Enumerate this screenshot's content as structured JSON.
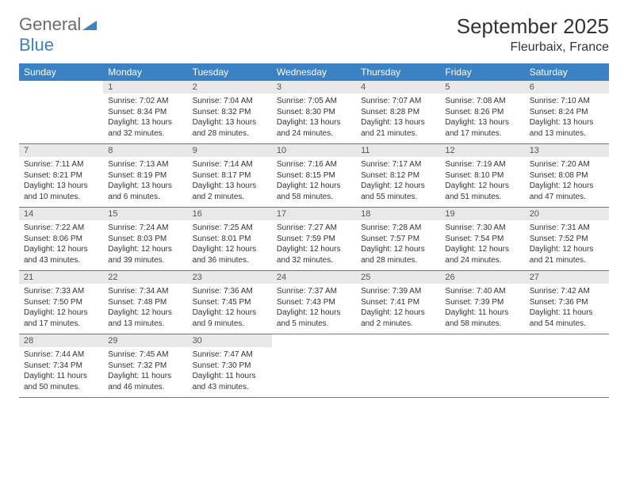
{
  "logo": {
    "word1": "General",
    "word2": "Blue"
  },
  "title": "September 2025",
  "location": "Fleurbaix, France",
  "colors": {
    "header_bg": "#3b82c4",
    "header_text": "#ffffff",
    "daynum_bg": "#e8e8e8",
    "border": "#3b82c4",
    "logo_gray": "#6b6b6b",
    "logo_blue": "#3b82c4"
  },
  "dayNames": [
    "Sunday",
    "Monday",
    "Tuesday",
    "Wednesday",
    "Thursday",
    "Friday",
    "Saturday"
  ],
  "weeks": [
    [
      {
        "empty": true
      },
      {
        "n": "1",
        "sunrise": "7:02 AM",
        "sunset": "8:34 PM",
        "daylight": "13 hours and 32 minutes."
      },
      {
        "n": "2",
        "sunrise": "7:04 AM",
        "sunset": "8:32 PM",
        "daylight": "13 hours and 28 minutes."
      },
      {
        "n": "3",
        "sunrise": "7:05 AM",
        "sunset": "8:30 PM",
        "daylight": "13 hours and 24 minutes."
      },
      {
        "n": "4",
        "sunrise": "7:07 AM",
        "sunset": "8:28 PM",
        "daylight": "13 hours and 21 minutes."
      },
      {
        "n": "5",
        "sunrise": "7:08 AM",
        "sunset": "8:26 PM",
        "daylight": "13 hours and 17 minutes."
      },
      {
        "n": "6",
        "sunrise": "7:10 AM",
        "sunset": "8:24 PM",
        "daylight": "13 hours and 13 minutes."
      }
    ],
    [
      {
        "n": "7",
        "sunrise": "7:11 AM",
        "sunset": "8:21 PM",
        "daylight": "13 hours and 10 minutes."
      },
      {
        "n": "8",
        "sunrise": "7:13 AM",
        "sunset": "8:19 PM",
        "daylight": "13 hours and 6 minutes."
      },
      {
        "n": "9",
        "sunrise": "7:14 AM",
        "sunset": "8:17 PM",
        "daylight": "13 hours and 2 minutes."
      },
      {
        "n": "10",
        "sunrise": "7:16 AM",
        "sunset": "8:15 PM",
        "daylight": "12 hours and 58 minutes."
      },
      {
        "n": "11",
        "sunrise": "7:17 AM",
        "sunset": "8:12 PM",
        "daylight": "12 hours and 55 minutes."
      },
      {
        "n": "12",
        "sunrise": "7:19 AM",
        "sunset": "8:10 PM",
        "daylight": "12 hours and 51 minutes."
      },
      {
        "n": "13",
        "sunrise": "7:20 AM",
        "sunset": "8:08 PM",
        "daylight": "12 hours and 47 minutes."
      }
    ],
    [
      {
        "n": "14",
        "sunrise": "7:22 AM",
        "sunset": "8:06 PM",
        "daylight": "12 hours and 43 minutes."
      },
      {
        "n": "15",
        "sunrise": "7:24 AM",
        "sunset": "8:03 PM",
        "daylight": "12 hours and 39 minutes."
      },
      {
        "n": "16",
        "sunrise": "7:25 AM",
        "sunset": "8:01 PM",
        "daylight": "12 hours and 36 minutes."
      },
      {
        "n": "17",
        "sunrise": "7:27 AM",
        "sunset": "7:59 PM",
        "daylight": "12 hours and 32 minutes."
      },
      {
        "n": "18",
        "sunrise": "7:28 AM",
        "sunset": "7:57 PM",
        "daylight": "12 hours and 28 minutes."
      },
      {
        "n": "19",
        "sunrise": "7:30 AM",
        "sunset": "7:54 PM",
        "daylight": "12 hours and 24 minutes."
      },
      {
        "n": "20",
        "sunrise": "7:31 AM",
        "sunset": "7:52 PM",
        "daylight": "12 hours and 21 minutes."
      }
    ],
    [
      {
        "n": "21",
        "sunrise": "7:33 AM",
        "sunset": "7:50 PM",
        "daylight": "12 hours and 17 minutes."
      },
      {
        "n": "22",
        "sunrise": "7:34 AM",
        "sunset": "7:48 PM",
        "daylight": "12 hours and 13 minutes."
      },
      {
        "n": "23",
        "sunrise": "7:36 AM",
        "sunset": "7:45 PM",
        "daylight": "12 hours and 9 minutes."
      },
      {
        "n": "24",
        "sunrise": "7:37 AM",
        "sunset": "7:43 PM",
        "daylight": "12 hours and 5 minutes."
      },
      {
        "n": "25",
        "sunrise": "7:39 AM",
        "sunset": "7:41 PM",
        "daylight": "12 hours and 2 minutes."
      },
      {
        "n": "26",
        "sunrise": "7:40 AM",
        "sunset": "7:39 PM",
        "daylight": "11 hours and 58 minutes."
      },
      {
        "n": "27",
        "sunrise": "7:42 AM",
        "sunset": "7:36 PM",
        "daylight": "11 hours and 54 minutes."
      }
    ],
    [
      {
        "n": "28",
        "sunrise": "7:44 AM",
        "sunset": "7:34 PM",
        "daylight": "11 hours and 50 minutes."
      },
      {
        "n": "29",
        "sunrise": "7:45 AM",
        "sunset": "7:32 PM",
        "daylight": "11 hours and 46 minutes."
      },
      {
        "n": "30",
        "sunrise": "7:47 AM",
        "sunset": "7:30 PM",
        "daylight": "11 hours and 43 minutes."
      },
      {
        "empty": true
      },
      {
        "empty": true
      },
      {
        "empty": true
      },
      {
        "empty": true
      }
    ]
  ],
  "labels": {
    "sunrise": "Sunrise:",
    "sunset": "Sunset:",
    "daylight": "Daylight:"
  }
}
